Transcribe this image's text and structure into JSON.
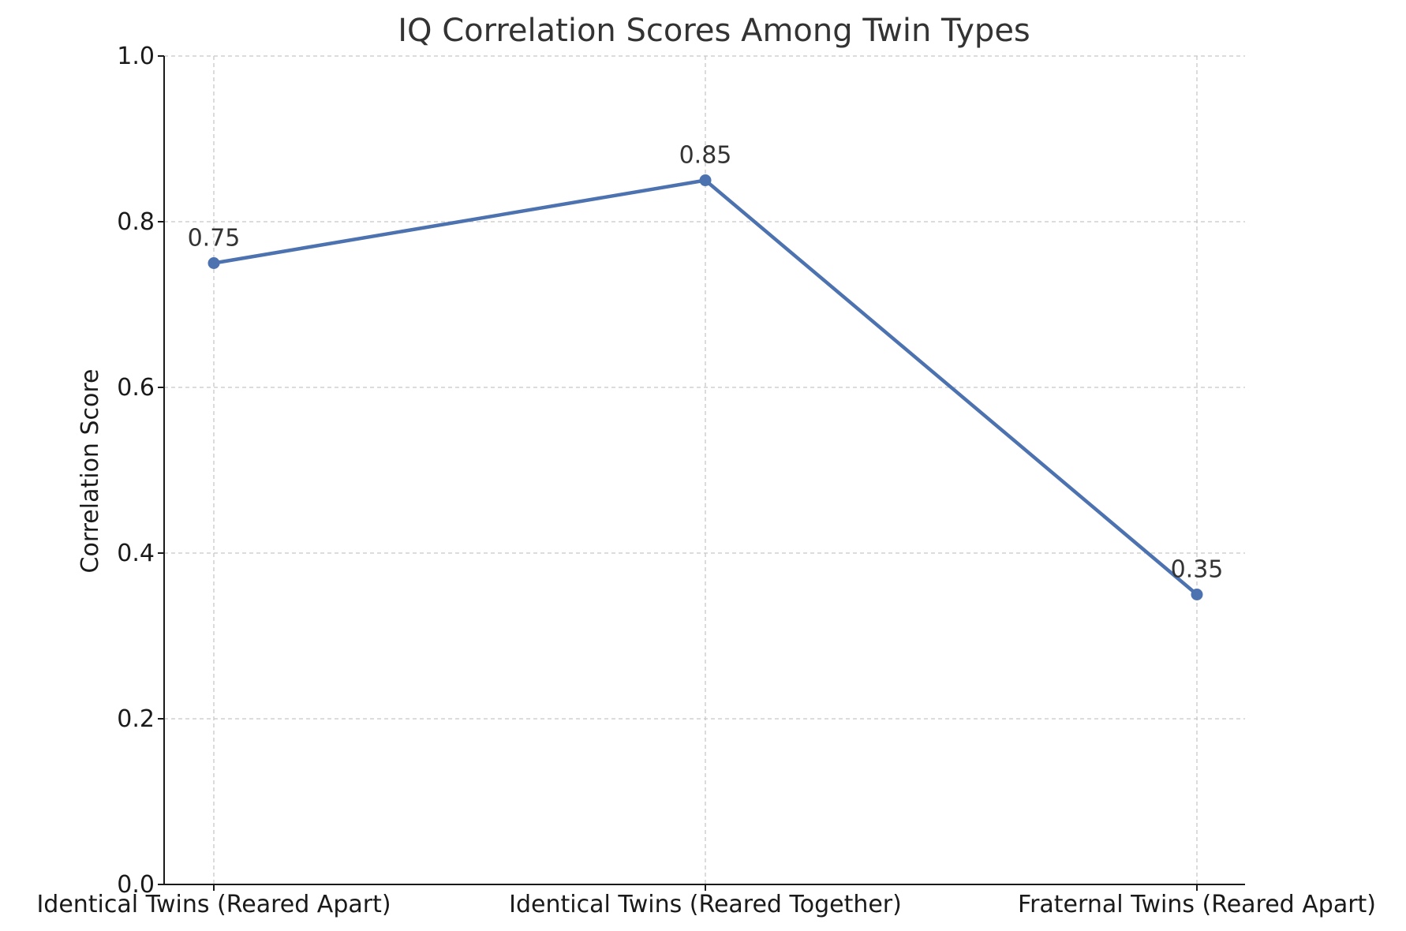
{
  "chart_data": {
    "type": "line",
    "title": "IQ Correlation Scores Among Twin Types",
    "xlabel": "",
    "ylabel": "Correlation Score",
    "categories": [
      "Identical Twins (Reared Apart)",
      "Identical Twins (Reared Together)",
      "Fraternal Twins (Reared Apart)"
    ],
    "series": [
      {
        "values": [
          0.75,
          0.85,
          0.35
        ],
        "color": "#4c72b0"
      }
    ],
    "data_labels": [
      "0.75",
      "0.85",
      "0.35"
    ],
    "ylim": [
      0.0,
      1.0
    ],
    "yticks": [
      "0.0",
      "0.2",
      "0.4",
      "0.6",
      "0.8",
      "1.0"
    ],
    "grid": true,
    "legend": "none"
  }
}
